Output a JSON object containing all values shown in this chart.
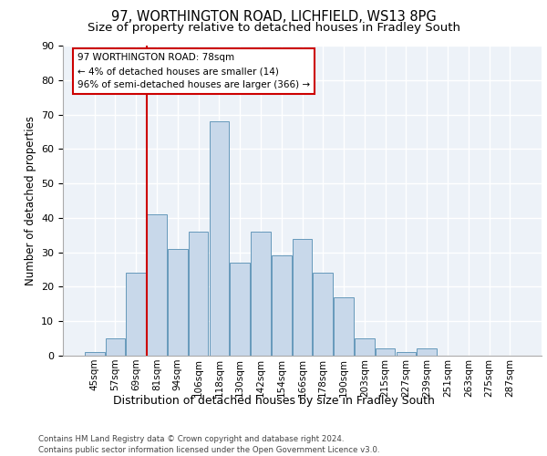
{
  "title1": "97, WORTHINGTON ROAD, LICHFIELD, WS13 8PG",
  "title2": "Size of property relative to detached houses in Fradley South",
  "xlabel": "Distribution of detached houses by size in Fradley South",
  "ylabel": "Number of detached properties",
  "bar_color": "#c8d8ea",
  "bar_edge_color": "#6699bb",
  "categories": [
    "45sqm",
    "57sqm",
    "69sqm",
    "81sqm",
    "94sqm",
    "106sqm",
    "118sqm",
    "130sqm",
    "142sqm",
    "154sqm",
    "166sqm",
    "178sqm",
    "190sqm",
    "203sqm",
    "215sqm",
    "227sqm",
    "239sqm",
    "251sqm",
    "263sqm",
    "275sqm",
    "287sqm"
  ],
  "values": [
    1,
    5,
    24,
    41,
    31,
    36,
    68,
    27,
    36,
    29,
    34,
    24,
    17,
    5,
    2,
    1,
    2,
    0,
    0,
    0,
    0
  ],
  "ylim": [
    0,
    90
  ],
  "yticks": [
    0,
    10,
    20,
    30,
    40,
    50,
    60,
    70,
    80,
    90
  ],
  "annotation_text": "97 WORTHINGTON ROAD: 78sqm\n← 4% of detached houses are smaller (14)\n96% of semi-detached houses are larger (366) →",
  "footer_line1": "Contains HM Land Registry data © Crown copyright and database right 2024.",
  "footer_line2": "Contains public sector information licensed under the Open Government Licence v3.0.",
  "bg_color": "#edf2f8",
  "grid_color": "white",
  "title1_fontsize": 10.5,
  "title2_fontsize": 9.5,
  "xlabel_fontsize": 9,
  "ylabel_fontsize": 8.5
}
